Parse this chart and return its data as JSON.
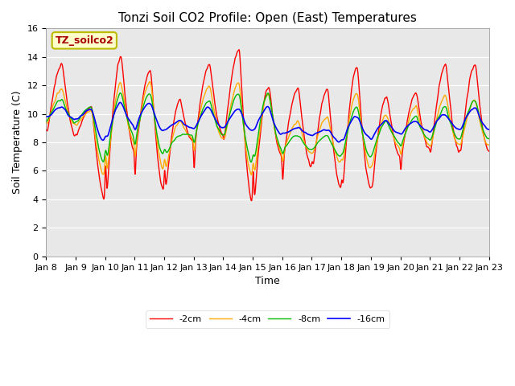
{
  "title": "Tonzi Soil CO2 Profile: Open (East) Temperatures",
  "ylabel": "Soil Temperature (C)",
  "xlabel": "Time",
  "legend_label": "TZ_soilco2",
  "series_labels": [
    "-2cm",
    "-4cm",
    "-8cm",
    "-16cm"
  ],
  "series_colors": [
    "#ff0000",
    "#ffaa00",
    "#00bb00",
    "#0000ff"
  ],
  "ylim": [
    0,
    16
  ],
  "yticks": [
    0,
    2,
    4,
    6,
    8,
    10,
    12,
    14,
    16
  ],
  "x_tick_labels": [
    "Jan 8",
    "Jan 9",
    "Jan 10",
    "Jan 11",
    "Jan 12",
    "Jan 13",
    "Jan 14",
    "Jan 15",
    "Jan 16",
    "Jan 17",
    "Jan 18",
    "Jan 19",
    "Jan 20",
    "Jan 21",
    "Jan 22",
    "Jan 23"
  ],
  "bg_color": "#e8e8e8",
  "legend_box_color": "#ffffcc",
  "legend_box_edge_color": "#bbbb00",
  "legend_text_color": "#aa0000",
  "title_fontsize": 11,
  "axis_fontsize": 9,
  "tick_fontsize": 8
}
